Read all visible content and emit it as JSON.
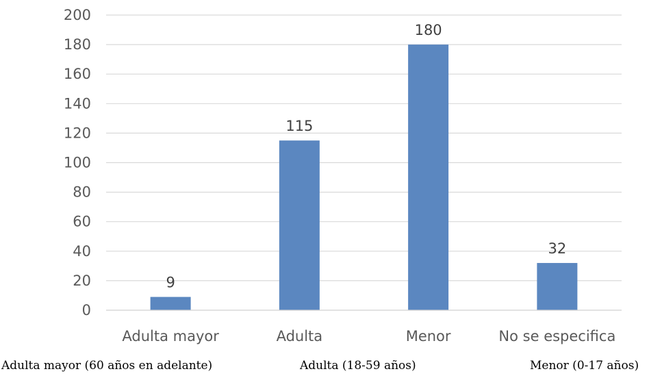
{
  "chart_data": {
    "type": "bar",
    "categories": [
      "Adulta mayor",
      "Adulta",
      "Menor",
      "No se especifica"
    ],
    "values": [
      9,
      115,
      180,
      32
    ],
    "title": "",
    "xlabel": "",
    "ylabel": "",
    "ylim": [
      0,
      200
    ],
    "yticks": [
      "0",
      "20",
      "40",
      "60",
      "80",
      "100",
      "120",
      "140",
      "160",
      "180",
      "200"
    ],
    "data_labels": [
      "9",
      "115",
      "180",
      "32"
    ],
    "grid": true,
    "legend": "none",
    "bar_color": "#5b87c0",
    "grid_color": "#d9d9d9"
  },
  "footnotes": {
    "adulta_mayor": "Adulta mayor (60 años en adelante)",
    "adulta": "Adulta (18-59 años)",
    "menor": "Menor (0-17 años)"
  }
}
